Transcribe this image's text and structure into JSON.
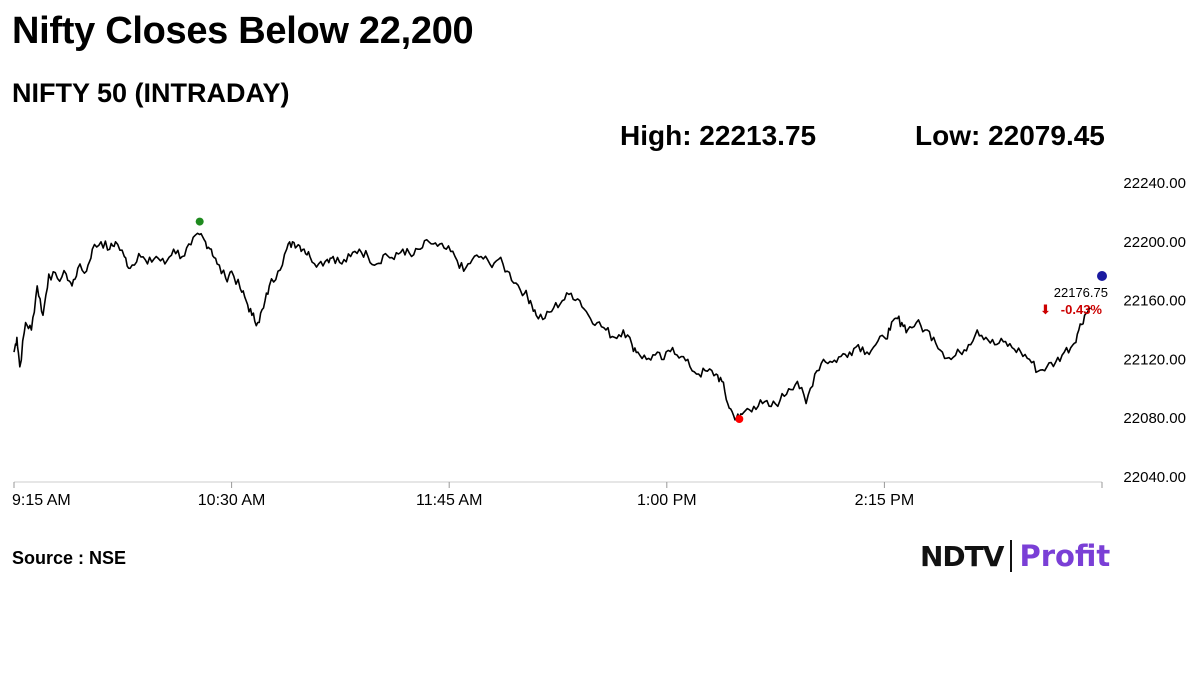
{
  "title": "Nifty Closes Below 22,200",
  "subtitle": "NIFTY 50 (INTRADAY)",
  "stats": {
    "high_label": "High: 22213.75",
    "low_label": "Low: 22079.45"
  },
  "source": "Source : NSE",
  "logo": {
    "part1": "NDTV",
    "part2": "Profit"
  },
  "colors": {
    "line": "#000000",
    "high_marker": "#1e8a1e",
    "low_marker": "#ff0000",
    "last_marker": "#1a1aa0",
    "down": "#cc0000",
    "grid": "#cccccc",
    "logo_profit": "#7a3fd6"
  },
  "chart_data": {
    "type": "line",
    "x_ticks": [
      "9:15 AM",
      "10:30 AM",
      "11:45 AM",
      "1:00 PM",
      "2:15 PM"
    ],
    "x_range_minutes": [
      0,
      375
    ],
    "y_ticks": [
      "22240.00",
      "22200.00",
      "22160.00",
      "22120.00",
      "22080.00",
      "22040.00"
    ],
    "ylim": [
      22040,
      22240
    ],
    "last_value_label": "22176.75",
    "change_label": "-0.43%",
    "high": 22213.75,
    "low": 22079.45,
    "series": [
      {
        "values": [
          [
            0,
            22125
          ],
          [
            1,
            22135
          ],
          [
            2,
            22115
          ],
          [
            4,
            22145
          ],
          [
            6,
            22140
          ],
          [
            8,
            22170
          ],
          [
            10,
            22150
          ],
          [
            12,
            22178
          ],
          [
            15,
            22175
          ],
          [
            18,
            22178
          ],
          [
            20,
            22170
          ],
          [
            22,
            22182
          ],
          [
            25,
            22180
          ],
          [
            27,
            22195
          ],
          [
            30,
            22200
          ],
          [
            33,
            22195
          ],
          [
            35,
            22200
          ],
          [
            38,
            22190
          ],
          [
            40,
            22182
          ],
          [
            43,
            22192
          ],
          [
            46,
            22185
          ],
          [
            49,
            22190
          ],
          [
            52,
            22185
          ],
          [
            55,
            22195
          ],
          [
            58,
            22190
          ],
          [
            61,
            22198
          ],
          [
            64,
            22205
          ],
          [
            66,
            22200
          ],
          [
            68,
            22195
          ],
          [
            70,
            22185
          ],
          [
            73,
            22175
          ],
          [
            75,
            22180
          ],
          [
            78,
            22168
          ],
          [
            80,
            22160
          ],
          [
            82,
            22150
          ],
          [
            84,
            22145
          ],
          [
            86,
            22155
          ],
          [
            88,
            22170
          ],
          [
            91,
            22180
          ],
          [
            94,
            22195
          ],
          [
            96,
            22200
          ],
          [
            98,
            22198
          ],
          [
            100,
            22195
          ],
          [
            102,
            22190
          ],
          [
            105,
            22185
          ],
          [
            108,
            22188
          ],
          [
            110,
            22190
          ],
          [
            113,
            22185
          ],
          [
            116,
            22190
          ],
          [
            119,
            22195
          ],
          [
            122,
            22190
          ],
          [
            125,
            22185
          ],
          [
            128,
            22192
          ],
          [
            131,
            22188
          ],
          [
            134,
            22195
          ],
          [
            137,
            22190
          ],
          [
            140,
            22195
          ],
          [
            143,
            22200
          ],
          [
            146,
            22197
          ],
          [
            149,
            22195
          ],
          [
            152,
            22190
          ],
          [
            155,
            22180
          ],
          [
            158,
            22188
          ],
          [
            161,
            22190
          ],
          [
            164,
            22185
          ],
          [
            167,
            22188
          ],
          [
            170,
            22180
          ],
          [
            173,
            22172
          ],
          [
            176,
            22165
          ],
          [
            178,
            22160
          ],
          [
            180,
            22150
          ],
          [
            183,
            22148
          ],
          [
            186,
            22155
          ],
          [
            189,
            22160
          ],
          [
            192,
            22165
          ],
          [
            195,
            22160
          ],
          [
            198,
            22150
          ],
          [
            201,
            22145
          ],
          [
            204,
            22140
          ],
          [
            207,
            22135
          ],
          [
            210,
            22140
          ],
          [
            213,
            22130
          ],
          [
            215,
            22125
          ],
          [
            218,
            22120
          ],
          [
            221,
            22123
          ],
          [
            224,
            22120
          ],
          [
            227,
            22128
          ],
          [
            230,
            22122
          ],
          [
            233,
            22115
          ],
          [
            236,
            22110
          ],
          [
            239,
            22112
          ],
          [
            242,
            22110
          ],
          [
            244,
            22105
          ],
          [
            246,
            22090
          ],
          [
            248,
            22082
          ],
          [
            250,
            22080
          ],
          [
            252,
            22085
          ],
          [
            255,
            22088
          ],
          [
            258,
            22090
          ],
          [
            261,
            22088
          ],
          [
            264,
            22092
          ],
          [
            267,
            22100
          ],
          [
            270,
            22105
          ],
          [
            273,
            22090
          ],
          [
            276,
            22110
          ],
          [
            279,
            22120
          ],
          [
            282,
            22118
          ],
          [
            285,
            22122
          ],
          [
            288,
            22125
          ],
          [
            291,
            22130
          ],
          [
            294,
            22125
          ],
          [
            297,
            22130
          ],
          [
            300,
            22135
          ],
          [
            302,
            22140
          ],
          [
            304,
            22148
          ],
          [
            306,
            22145
          ],
          [
            308,
            22140
          ],
          [
            311,
            22145
          ],
          [
            314,
            22140
          ],
          [
            317,
            22135
          ],
          [
            320,
            22125
          ],
          [
            323,
            22120
          ],
          [
            326,
            22125
          ],
          [
            329,
            22130
          ],
          [
            332,
            22140
          ],
          [
            335,
            22135
          ],
          [
            338,
            22130
          ],
          [
            341,
            22132
          ],
          [
            344,
            22128
          ],
          [
            347,
            22125
          ],
          [
            350,
            22120
          ],
          [
            353,
            22112
          ],
          [
            356,
            22115
          ],
          [
            359,
            22118
          ],
          [
            362,
            22125
          ],
          [
            365,
            22130
          ],
          [
            367,
            22140
          ],
          [
            369,
            22150
          ],
          [
            371,
            22155
          ]
        ]
      }
    ]
  }
}
